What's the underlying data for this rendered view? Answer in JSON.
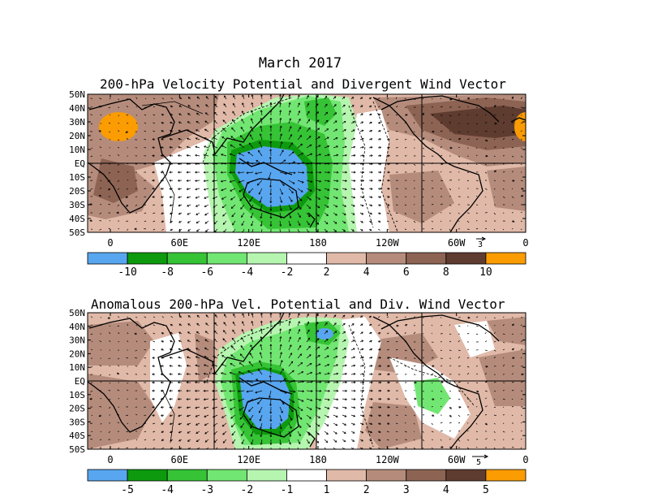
{
  "title": "March 2017",
  "panels": [
    {
      "id": "top",
      "title": "200-hPa Velocity Potential and Divergent Wind Vector",
      "lat_labels": [
        "50N",
        "40N",
        "30N",
        "20N",
        "10N",
        "EQ",
        "10S",
        "20S",
        "30S",
        "40S",
        "50S"
      ],
      "lon_labels": [
        "0",
        "60E",
        "120E",
        "180",
        "120W",
        "60W",
        "0"
      ],
      "vector_scale": "3",
      "colorbar_labels": [
        "-10",
        "-8",
        "-6",
        "-4",
        "-2",
        "2",
        "4",
        "6",
        "8",
        "10"
      ],
      "colors": [
        "#58a6ef",
        "#0e9a0e",
        "#36c336",
        "#72e672",
        "#b6f5b0",
        "#ffffff",
        "#e0b9a8",
        "#b58c7c",
        "#8d6353",
        "#5f3c30",
        "#fa9c02"
      ]
    },
    {
      "id": "bottom",
      "title": "Anomalous 200-hPa Vel. Potential and Div. Wind Vector",
      "lat_labels": [
        "50N",
        "40N",
        "30N",
        "20N",
        "10N",
        "EQ",
        "10S",
        "20S",
        "30S",
        "40S",
        "50S"
      ],
      "lon_labels": [
        "0",
        "60E",
        "120E",
        "180",
        "120W",
        "60W",
        "0"
      ],
      "vector_scale": "5",
      "colorbar_labels": [
        "-5",
        "-4",
        "-3",
        "-2",
        "-1",
        "1",
        "2",
        "3",
        "4",
        "5"
      ],
      "colors": [
        "#58a6ef",
        "#0e9a0e",
        "#36c336",
        "#72e672",
        "#b6f5b0",
        "#ffffff",
        "#e0b9a8",
        "#b58c7c",
        "#8d6353",
        "#5f3c30",
        "#fa9c02"
      ]
    }
  ]
}
